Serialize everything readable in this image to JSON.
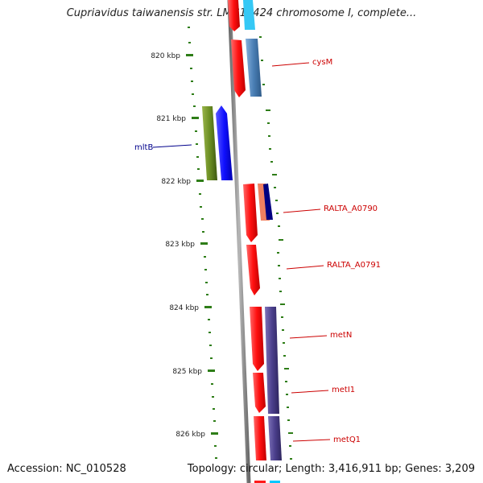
{
  "title": "Cupriavidus taiwanensis str. LMG19424 chromosome I, complete...",
  "footer": {
    "accession": "Accession: NC_010528",
    "summary": "Topology: circular; Length: 3,416,911 bp; Genes: 3,209"
  },
  "scale": {
    "unit": "kbp",
    "ticks": [
      "820 kbp",
      "821 kbp",
      "822 kbp",
      "823 kbp",
      "824 kbp",
      "825 kbp",
      "826 kbp"
    ]
  },
  "genes": {
    "cysM": "cysM",
    "mltB": "mltB",
    "RALTA_A0790": "RALTA_A0790",
    "RALTA_A0791": "RALTA_A0791",
    "metN": "metN",
    "metI1": "metI1",
    "metQ1": "metQ1"
  },
  "colors": {
    "backbone": "#8a8a8a",
    "tick": "#2e7d17",
    "red_gene": "#ff1a1a",
    "steel_gene": "#4a7fb5",
    "olive_gene": "#6b8e23",
    "blue_gene": "#1010ff",
    "purple_gene": "#4b3f8c",
    "salmon_gene": "#f08060",
    "navy_gene": "#000080",
    "cyan_gene": "#00c8ff",
    "label_red": "#cc0000",
    "label_blue": "#00008b"
  }
}
